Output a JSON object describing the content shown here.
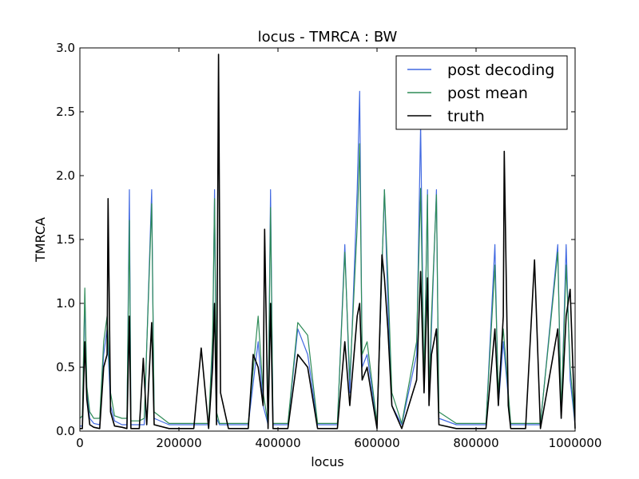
{
  "chart_data": {
    "type": "line",
    "title": "locus - TMRCA : BW",
    "xlabel": "locus",
    "ylabel": "TMRCA",
    "xlim": [
      0,
      1000000
    ],
    "ylim": [
      0,
      3.0
    ],
    "x_ticks": [
      0,
      200000,
      400000,
      600000,
      800000,
      1000000
    ],
    "x_tick_labels": [
      "0",
      "200000",
      "400000",
      "600000",
      "800000",
      "1000000"
    ],
    "y_ticks": [
      0.0,
      0.5,
      1.0,
      1.5,
      2.0,
      2.5,
      3.0
    ],
    "y_tick_labels": [
      "0.0",
      "0.5",
      "1.0",
      "1.5",
      "2.0",
      "2.5",
      "3.0"
    ],
    "grid": false,
    "legend_position": "top-right",
    "series": [
      {
        "name": "post decoding",
        "color": "#4169e1",
        "x": [
          0,
          5000,
          10000,
          14000,
          20000,
          28000,
          40000,
          48000,
          55000,
          62000,
          70000,
          85000,
          95000,
          100000,
          103000,
          120000,
          130000,
          145000,
          150000,
          180000,
          230000,
          260000,
          268000,
          272000,
          276000,
          282000,
          300000,
          340000,
          360000,
          370000,
          380000,
          385000,
          390000,
          420000,
          440000,
          460000,
          480000,
          520000,
          535000,
          545000,
          560000,
          565000,
          570000,
          580000,
          600000,
          615000,
          622000,
          630000,
          650000,
          680000,
          688000,
          695000,
          702000,
          705000,
          710000,
          720000,
          725000,
          760000,
          790000,
          820000,
          838000,
          845000,
          855000,
          870000,
          900000,
          930000,
          965000,
          972000,
          982000,
          990000,
          1000000
        ],
        "y": [
          0.04,
          0.04,
          1.05,
          0.3,
          0.1,
          0.06,
          0.05,
          0.6,
          0.8,
          0.2,
          0.08,
          0.05,
          0.05,
          1.89,
          0.05,
          0.05,
          0.05,
          1.89,
          0.1,
          0.05,
          0.05,
          0.05,
          0.6,
          1.89,
          0.1,
          0.05,
          0.05,
          0.05,
          0.7,
          0.2,
          0.05,
          1.89,
          0.05,
          0.05,
          0.8,
          0.6,
          0.05,
          0.05,
          1.46,
          0.3,
          1.89,
          2.66,
          0.5,
          0.6,
          0.05,
          1.89,
          1.0,
          0.2,
          0.05,
          0.6,
          2.4,
          0.3,
          1.89,
          0.2,
          0.8,
          1.89,
          0.1,
          0.05,
          0.05,
          0.05,
          1.46,
          0.2,
          0.7,
          0.05,
          0.05,
          0.05,
          1.46,
          0.1,
          1.46,
          0.4,
          0.05
        ]
      },
      {
        "name": "post mean",
        "color": "#2e8b57",
        "x": [
          0,
          5000,
          10000,
          14000,
          20000,
          28000,
          40000,
          48000,
          55000,
          62000,
          70000,
          85000,
          95000,
          100000,
          103000,
          120000,
          130000,
          145000,
          150000,
          180000,
          230000,
          260000,
          268000,
          272000,
          276000,
          282000,
          300000,
          340000,
          360000,
          370000,
          380000,
          385000,
          390000,
          420000,
          440000,
          460000,
          480000,
          520000,
          535000,
          545000,
          560000,
          565000,
          570000,
          580000,
          600000,
          615000,
          622000,
          630000,
          650000,
          680000,
          688000,
          695000,
          702000,
          705000,
          710000,
          720000,
          725000,
          760000,
          790000,
          820000,
          838000,
          845000,
          855000,
          870000,
          900000,
          930000,
          965000,
          972000,
          982000,
          990000,
          1000000
        ],
        "y": [
          0.1,
          0.12,
          1.12,
          0.35,
          0.15,
          0.1,
          0.1,
          0.7,
          0.9,
          0.3,
          0.12,
          0.1,
          0.1,
          1.65,
          0.08,
          0.08,
          0.1,
          1.78,
          0.15,
          0.06,
          0.06,
          0.06,
          0.75,
          1.82,
          0.15,
          0.06,
          0.06,
          0.06,
          0.9,
          0.3,
          0.06,
          1.75,
          0.06,
          0.06,
          0.85,
          0.75,
          0.06,
          0.06,
          1.4,
          0.4,
          1.6,
          2.25,
          0.6,
          0.7,
          0.06,
          1.89,
          1.2,
          0.3,
          0.06,
          0.7,
          1.9,
          0.4,
          1.85,
          0.3,
          0.9,
          1.85,
          0.15,
          0.06,
          0.06,
          0.06,
          1.3,
          0.3,
          0.8,
          0.06,
          0.06,
          0.06,
          1.4,
          0.15,
          1.3,
          0.5,
          0.06
        ]
      },
      {
        "name": "truth",
        "color": "#000000",
        "x": [
          0,
          5000,
          10000,
          14000,
          20000,
          28000,
          40000,
          48000,
          55000,
          57000,
          62000,
          70000,
          85000,
          95000,
          100000,
          103000,
          120000,
          128000,
          135000,
          145000,
          150000,
          180000,
          230000,
          245000,
          260000,
          268000,
          272000,
          276000,
          280000,
          284000,
          300000,
          340000,
          350000,
          360000,
          370000,
          373000,
          380000,
          385000,
          390000,
          420000,
          440000,
          460000,
          480000,
          520000,
          535000,
          545000,
          560000,
          565000,
          570000,
          580000,
          600000,
          610000,
          615000,
          622000,
          630000,
          650000,
          680000,
          688000,
          695000,
          702000,
          705000,
          710000,
          720000,
          725000,
          760000,
          790000,
          820000,
          838000,
          845000,
          855000,
          857000,
          865000,
          870000,
          900000,
          918000,
          930000,
          965000,
          972000,
          982000,
          990000,
          1000000
        ],
        "y": [
          0.02,
          0.02,
          0.7,
          0.25,
          0.05,
          0.03,
          0.02,
          0.5,
          0.6,
          1.82,
          0.15,
          0.04,
          0.03,
          0.02,
          0.9,
          0.02,
          0.02,
          0.57,
          0.05,
          0.85,
          0.05,
          0.02,
          0.02,
          0.65,
          0.02,
          0.5,
          1.0,
          0.05,
          2.95,
          0.3,
          0.02,
          0.02,
          0.6,
          0.5,
          0.2,
          1.58,
          0.02,
          1.0,
          0.02,
          0.02,
          0.6,
          0.5,
          0.02,
          0.02,
          0.7,
          0.2,
          0.9,
          1.0,
          0.4,
          0.5,
          0.02,
          1.38,
          1.2,
          0.8,
          0.2,
          0.02,
          0.4,
          1.25,
          0.3,
          1.2,
          0.2,
          0.6,
          0.8,
          0.05,
          0.02,
          0.02,
          0.02,
          0.8,
          0.2,
          0.9,
          2.19,
          0.2,
          0.02,
          0.02,
          1.34,
          0.02,
          0.8,
          0.1,
          0.9,
          1.11,
          0.02
        ]
      }
    ]
  }
}
